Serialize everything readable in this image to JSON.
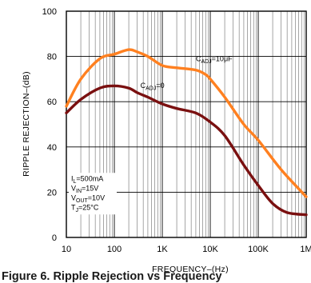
{
  "caption": "Figure 6.  Ripple Rejection vs Frequency",
  "chart_data": {
    "type": "line",
    "xlabel": "FREQUENCY–(Hz)",
    "ylabel": "RIPPLE REJECTION–(dB)",
    "xscale": "log",
    "xlim": [
      10,
      1000000
    ],
    "ylim": [
      0,
      100
    ],
    "xticks": [
      {
        "value": 10,
        "label": "10"
      },
      {
        "value": 100,
        "label": "100"
      },
      {
        "value": 1000,
        "label": "1K"
      },
      {
        "value": 10000,
        "label": "10K"
      },
      {
        "value": 100000,
        "label": "100K"
      },
      {
        "value": 1000000,
        "label": "1M"
      }
    ],
    "yticks": [
      {
        "value": 0,
        "label": "0"
      },
      {
        "value": 20,
        "label": "20"
      },
      {
        "value": 40,
        "label": "40"
      },
      {
        "value": 60,
        "label": "60"
      },
      {
        "value": 80,
        "label": "80"
      },
      {
        "value": 100,
        "label": "100"
      }
    ],
    "grid": true,
    "series": [
      {
        "name": "C_ADJ = 10 μF",
        "label_html": {
          "main": "C",
          "sub": "ADJ",
          "rest": "=10μF"
        },
        "label_at": {
          "x": 5000,
          "y": 78
        },
        "color": "#ff8020",
        "points": [
          [
            10,
            58
          ],
          [
            20,
            70
          ],
          [
            50,
            79
          ],
          [
            100,
            81
          ],
          [
            200,
            83
          ],
          [
            300,
            82
          ],
          [
            500,
            80
          ],
          [
            1000,
            76
          ],
          [
            2000,
            75
          ],
          [
            5000,
            74
          ],
          [
            8000,
            72
          ],
          [
            10000,
            70
          ],
          [
            20000,
            62
          ],
          [
            50000,
            50
          ],
          [
            100000,
            43
          ],
          [
            300000,
            30
          ],
          [
            1000000,
            18
          ]
        ]
      },
      {
        "name": "C_ADJ = 0",
        "label_html": {
          "main": "C",
          "sub": "ADJ",
          "rest": "=0"
        },
        "label_at": {
          "x": 350,
          "y": 66
        },
        "color": "#7a1010",
        "points": [
          [
            10,
            55
          ],
          [
            20,
            61
          ],
          [
            50,
            66
          ],
          [
            100,
            67
          ],
          [
            200,
            66
          ],
          [
            300,
            64
          ],
          [
            500,
            62
          ],
          [
            1000,
            59
          ],
          [
            2000,
            57
          ],
          [
            5000,
            55
          ],
          [
            10000,
            51
          ],
          [
            20000,
            45
          ],
          [
            50000,
            32
          ],
          [
            100000,
            23
          ],
          [
            200000,
            15
          ],
          [
            400000,
            11
          ],
          [
            1000000,
            10
          ]
        ]
      }
    ],
    "conditions": [
      {
        "main": "I",
        "sub": "L",
        "rest": "=500mA"
      },
      {
        "main": "V",
        "sub": "IN",
        "rest": "=15V"
      },
      {
        "main": "V",
        "sub": "OUT",
        "rest": "=10V"
      },
      {
        "main": "T",
        "sub": "J",
        "rest": "=25°C"
      }
    ]
  }
}
